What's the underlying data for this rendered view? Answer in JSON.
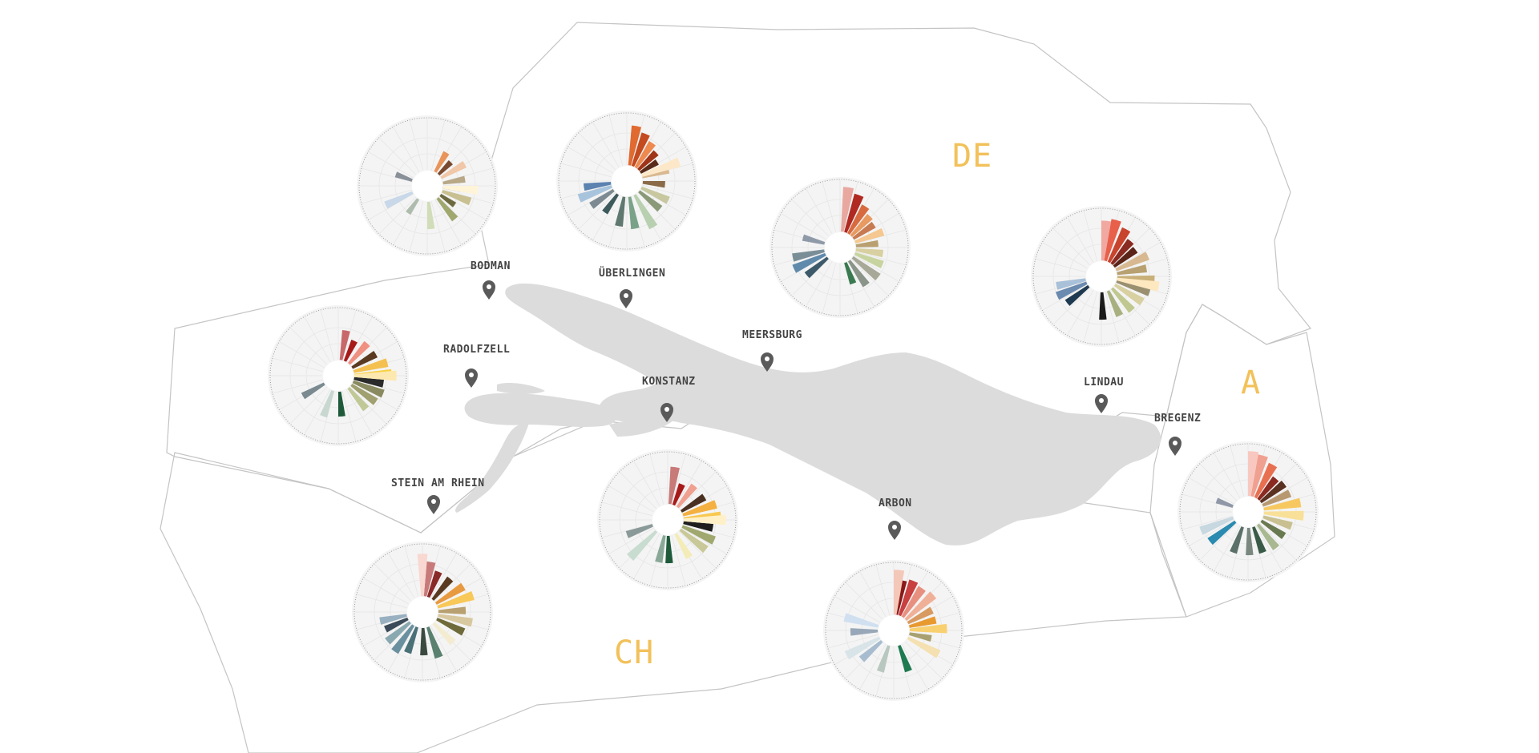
{
  "colors": {
    "background": "#ffffff",
    "lake": "#dcdcdc",
    "border": "#c4c4c4",
    "country_label": "#f2c15a",
    "town_label": "#444444",
    "pin": "#5a5a5a",
    "chart_face": "#f4f4f4",
    "chart_grid": "#e6e6e6",
    "chart_ring": "#9a9a9a"
  },
  "countries": [
    {
      "id": "de",
      "label": "DE"
    },
    {
      "id": "a",
      "label": "A"
    },
    {
      "id": "ch",
      "label": "CH"
    }
  ],
  "towns": [
    {
      "id": "bodman",
      "label": "BODMAN"
    },
    {
      "id": "ueberlingen",
      "label": "ÜBERLINGEN"
    },
    {
      "id": "meersburg",
      "label": "MEERSBURG"
    },
    {
      "id": "radolfzell",
      "label": "RADOLFZELL"
    },
    {
      "id": "konstanz",
      "label": "KONSTANZ"
    },
    {
      "id": "lindau",
      "label": "LINDAU"
    },
    {
      "id": "bregenz",
      "label": "BREGENZ"
    },
    {
      "id": "stein-am-rhein",
      "label": "STEIN AM RHEIN"
    },
    {
      "id": "arbon",
      "label": "ARBON"
    }
  ],
  "chart_data": [
    {
      "type": "radial-bar",
      "town": "bodman",
      "bars": [
        {
          "angle": 30,
          "value": 0.45,
          "color": "#e8945a"
        },
        {
          "angle": 45,
          "value": 0.35,
          "color": "#7a4a30"
        },
        {
          "angle": 60,
          "value": 0.55,
          "color": "#f0c7a8"
        },
        {
          "angle": 80,
          "value": 0.45,
          "color": "#b8a888"
        },
        {
          "angle": 95,
          "value": 0.35,
          "color": "#857055"
        },
        {
          "angle": 110,
          "value": 0.6,
          "color": "#c8c090"
        },
        {
          "angle": 125,
          "value": 0.35,
          "color": "#6e6a40"
        },
        {
          "angle": 140,
          "value": 0.55,
          "color": "#a0a870"
        },
        {
          "angle": 175,
          "value": 0.55,
          "color": "#d0ddb8"
        },
        {
          "angle": 215,
          "value": 0.35,
          "color": "#aebcae"
        },
        {
          "angle": 245,
          "value": 0.6,
          "color": "#c8d8e8"
        },
        {
          "angle": 290,
          "value": 0.35,
          "color": "#8a9098"
        },
        {
          "angle": 95,
          "value": 0.7,
          "color": "#fff4d8"
        }
      ]
    },
    {
      "type": "radial-bar",
      "town": "ueberlingen",
      "bars": [
        {
          "angle": 10,
          "value": 0.8,
          "color": "#e06a30"
        },
        {
          "angle": 22,
          "value": 0.7,
          "color": "#c44a20"
        },
        {
          "angle": 34,
          "value": 0.6,
          "color": "#ee8a50"
        },
        {
          "angle": 46,
          "value": 0.5,
          "color": "#a03418"
        },
        {
          "angle": 58,
          "value": 0.4,
          "color": "#5a2a18"
        },
        {
          "angle": 75,
          "value": 0.55,
          "color": "#d9b890"
        },
        {
          "angle": 95,
          "value": 0.45,
          "color": "#8a6a48"
        },
        {
          "angle": 115,
          "value": 0.6,
          "color": "#c8c8a0"
        },
        {
          "angle": 130,
          "value": 0.55,
          "color": "#8a9a78"
        },
        {
          "angle": 150,
          "value": 0.75,
          "color": "#b8d0b0"
        },
        {
          "angle": 170,
          "value": 0.65,
          "color": "#7aa288"
        },
        {
          "angle": 190,
          "value": 0.6,
          "color": "#5f7870"
        },
        {
          "angle": 215,
          "value": 0.45,
          "color": "#3d5a5c"
        },
        {
          "angle": 235,
          "value": 0.55,
          "color": "#7d8a92"
        },
        {
          "angle": 250,
          "value": 0.7,
          "color": "#a8c4dc"
        },
        {
          "angle": 262,
          "value": 0.55,
          "color": "#5c82b0"
        },
        {
          "angle": 70,
          "value": 0.8,
          "color": "#fce8c8"
        }
      ]
    },
    {
      "type": "radial-bar",
      "town": "meersburg",
      "bars": [
        {
          "angle": 20,
          "value": 0.8,
          "color": "#b02a22"
        },
        {
          "angle": 32,
          "value": 0.65,
          "color": "#d86a40"
        },
        {
          "angle": 44,
          "value": 0.55,
          "color": "#e89a60"
        },
        {
          "angle": 56,
          "value": 0.5,
          "color": "#c87a50"
        },
        {
          "angle": 70,
          "value": 0.6,
          "color": "#f4c890"
        },
        {
          "angle": 84,
          "value": 0.45,
          "color": "#b8a070"
        },
        {
          "angle": 98,
          "value": 0.55,
          "color": "#d8d0a0"
        },
        {
          "angle": 112,
          "value": 0.6,
          "color": "#c8d4a0"
        },
        {
          "angle": 128,
          "value": 0.65,
          "color": "#a8a898"
        },
        {
          "angle": 145,
          "value": 0.6,
          "color": "#8a9488"
        },
        {
          "angle": 160,
          "value": 0.45,
          "color": "#3a7a50"
        },
        {
          "angle": 230,
          "value": 0.55,
          "color": "#3d5a6a"
        },
        {
          "angle": 245,
          "value": 0.7,
          "color": "#5f8aac"
        },
        {
          "angle": 258,
          "value": 0.65,
          "color": "#7a8e98"
        },
        {
          "angle": 285,
          "value": 0.45,
          "color": "#8f9aa8"
        },
        {
          "angle": 8,
          "value": 0.9,
          "color": "#e8a8a0"
        }
      ]
    },
    {
      "type": "radial-bar",
      "town": "lindau",
      "bars": [
        {
          "angle": 15,
          "value": 0.85,
          "color": "#e8604a"
        },
        {
          "angle": 28,
          "value": 0.75,
          "color": "#c8442c"
        },
        {
          "angle": 40,
          "value": 0.6,
          "color": "#8a2a20"
        },
        {
          "angle": 52,
          "value": 0.55,
          "color": "#5a2418"
        },
        {
          "angle": 66,
          "value": 0.7,
          "color": "#d8b890"
        },
        {
          "angle": 80,
          "value": 0.6,
          "color": "#b8a070"
        },
        {
          "angle": 94,
          "value": 0.75,
          "color": "#c8b078"
        },
        {
          "angle": 108,
          "value": 0.7,
          "color": "#9a9070"
        },
        {
          "angle": 122,
          "value": 0.65,
          "color": "#d8d0a0"
        },
        {
          "angle": 138,
          "value": 0.6,
          "color": "#c0c890"
        },
        {
          "angle": 155,
          "value": 0.55,
          "color": "#a8b080"
        },
        {
          "angle": 178,
          "value": 0.55,
          "color": "#1a1a1a"
        },
        {
          "angle": 232,
          "value": 0.55,
          "color": "#1e3a50"
        },
        {
          "angle": 246,
          "value": 0.65,
          "color": "#6a8ab0"
        },
        {
          "angle": 258,
          "value": 0.6,
          "color": "#a8c0d8"
        },
        {
          "angle": 5,
          "value": 0.8,
          "color": "#f0a8a0"
        },
        {
          "angle": 100,
          "value": 0.85,
          "color": "#fde8c0"
        }
      ]
    },
    {
      "type": "radial-bar",
      "town": "radolfzell",
      "bars": [
        {
          "angle": 10,
          "value": 0.6,
          "color": "#c8686a"
        },
        {
          "angle": 25,
          "value": 0.45,
          "color": "#a81a1a"
        },
        {
          "angle": 42,
          "value": 0.55,
          "color": "#f09080"
        },
        {
          "angle": 60,
          "value": 0.55,
          "color": "#5a3a20"
        },
        {
          "angle": 75,
          "value": 0.7,
          "color": "#f4c050"
        },
        {
          "angle": 88,
          "value": 0.75,
          "color": "#f8d040"
        },
        {
          "angle": 100,
          "value": 0.6,
          "color": "#2a2a2a"
        },
        {
          "angle": 112,
          "value": 0.65,
          "color": "#8a8a60"
        },
        {
          "angle": 125,
          "value": 0.6,
          "color": "#a0a070"
        },
        {
          "angle": 140,
          "value": 0.55,
          "color": "#c0c898"
        },
        {
          "angle": 175,
          "value": 0.5,
          "color": "#1e5a3a"
        },
        {
          "angle": 200,
          "value": 0.55,
          "color": "#c8d8d0"
        },
        {
          "angle": 240,
          "value": 0.5,
          "color": "#7a8a90"
        },
        {
          "angle": 90,
          "value": 0.85,
          "color": "#fde8b0"
        }
      ]
    },
    {
      "type": "radial-bar",
      "town": "konstanz",
      "bars": [
        {
          "angle": 8,
          "value": 0.75,
          "color": "#c87a78"
        },
        {
          "angle": 22,
          "value": 0.45,
          "color": "#a81a1a"
        },
        {
          "angle": 38,
          "value": 0.55,
          "color": "#f0a090"
        },
        {
          "angle": 58,
          "value": 0.55,
          "color": "#4a3020"
        },
        {
          "angle": 72,
          "value": 0.7,
          "color": "#f4b040"
        },
        {
          "angle": 86,
          "value": 0.75,
          "color": "#f8c850"
        },
        {
          "angle": 100,
          "value": 0.6,
          "color": "#1e1e1e"
        },
        {
          "angle": 114,
          "value": 0.7,
          "color": "#a0a870"
        },
        {
          "angle": 128,
          "value": 0.65,
          "color": "#c8c898"
        },
        {
          "angle": 150,
          "value": 0.55,
          "color": "#f4ecb8"
        },
        {
          "angle": 178,
          "value": 0.55,
          "color": "#1e5a3a"
        },
        {
          "angle": 192,
          "value": 0.55,
          "color": "#8aa898"
        },
        {
          "angle": 225,
          "value": 0.75,
          "color": "#c8dcd0"
        },
        {
          "angle": 250,
          "value": 0.55,
          "color": "#8a9a98"
        },
        {
          "angle": 90,
          "value": 0.85,
          "color": "#fff0c8"
        }
      ]
    },
    {
      "type": "radial-bar",
      "town": "stein-am-rhein",
      "bars": [
        {
          "angle": 10,
          "value": 0.7,
          "color": "#c87a7a"
        },
        {
          "angle": 22,
          "value": 0.55,
          "color": "#8a2a28"
        },
        {
          "angle": 40,
          "value": 0.55,
          "color": "#5a3a20"
        },
        {
          "angle": 58,
          "value": 0.65,
          "color": "#e89a40"
        },
        {
          "angle": 72,
          "value": 0.75,
          "color": "#f8c858"
        },
        {
          "angle": 88,
          "value": 0.55,
          "color": "#b8a070"
        },
        {
          "angle": 102,
          "value": 0.7,
          "color": "#d8c8a0"
        },
        {
          "angle": 116,
          "value": 0.6,
          "color": "#6e6a3a"
        },
        {
          "angle": 135,
          "value": 0.55,
          "color": "#f4ecd0"
        },
        {
          "angle": 160,
          "value": 0.65,
          "color": "#5a8070"
        },
        {
          "angle": 178,
          "value": 0.55,
          "color": "#3a4a40"
        },
        {
          "angle": 200,
          "value": 0.55,
          "color": "#4a7078"
        },
        {
          "angle": 215,
          "value": 0.65,
          "color": "#6a90a0"
        },
        {
          "angle": 230,
          "value": 0.6,
          "color": "#8aa8b0"
        },
        {
          "angle": 245,
          "value": 0.5,
          "color": "#3a4a58"
        },
        {
          "angle": 258,
          "value": 0.55,
          "color": "#98b0c0"
        },
        {
          "angle": 0,
          "value": 0.85,
          "color": "#f8d8d0"
        }
      ]
    },
    {
      "type": "radial-bar",
      "town": "arbon",
      "bars": [
        {
          "angle": 10,
          "value": 0.7,
          "color": "#8a1a1a"
        },
        {
          "angle": 22,
          "value": 0.75,
          "color": "#c84040"
        },
        {
          "angle": 34,
          "value": 0.7,
          "color": "#e89080"
        },
        {
          "angle": 48,
          "value": 0.75,
          "color": "#f0b098"
        },
        {
          "angle": 62,
          "value": 0.55,
          "color": "#d89a60"
        },
        {
          "angle": 76,
          "value": 0.55,
          "color": "#e89a30"
        },
        {
          "angle": 88,
          "value": 0.75,
          "color": "#f8d070"
        },
        {
          "angle": 102,
          "value": 0.45,
          "color": "#a8a070"
        },
        {
          "angle": 118,
          "value": 0.7,
          "color": "#f4e0b0"
        },
        {
          "angle": 160,
          "value": 0.55,
          "color": "#1e7a50"
        },
        {
          "angle": 198,
          "value": 0.55,
          "color": "#b8c8c0"
        },
        {
          "angle": 228,
          "value": 0.55,
          "color": "#a8bcd0"
        },
        {
          "angle": 242,
          "value": 0.75,
          "color": "#d8e4e8"
        },
        {
          "angle": 268,
          "value": 0.55,
          "color": "#98a8b8"
        },
        {
          "angle": 285,
          "value": 0.7,
          "color": "#d0e0f0"
        },
        {
          "angle": 5,
          "value": 0.9,
          "color": "#f4c8b8"
        }
      ]
    },
    {
      "type": "radial-bar",
      "town": "bregenz",
      "bars": [
        {
          "angle": 15,
          "value": 0.85,
          "color": "#f0a090"
        },
        {
          "angle": 28,
          "value": 0.75,
          "color": "#e87050"
        },
        {
          "angle": 40,
          "value": 0.55,
          "color": "#8a2a20"
        },
        {
          "angle": 52,
          "value": 0.6,
          "color": "#5a3020"
        },
        {
          "angle": 66,
          "value": 0.6,
          "color": "#b89870"
        },
        {
          "angle": 80,
          "value": 0.75,
          "color": "#f8c860"
        },
        {
          "angle": 94,
          "value": 0.8,
          "color": "#f8e098"
        },
        {
          "angle": 108,
          "value": 0.6,
          "color": "#c8c090"
        },
        {
          "angle": 124,
          "value": 0.55,
          "color": "#6a7a50"
        },
        {
          "angle": 142,
          "value": 0.6,
          "color": "#a8b890"
        },
        {
          "angle": 160,
          "value": 0.55,
          "color": "#3a5a48"
        },
        {
          "angle": 178,
          "value": 0.55,
          "color": "#7a8880"
        },
        {
          "angle": 200,
          "value": 0.55,
          "color": "#5a7068"
        },
        {
          "angle": 232,
          "value": 0.65,
          "color": "#2a8ab0"
        },
        {
          "angle": 248,
          "value": 0.7,
          "color": "#c8d8e0"
        },
        {
          "angle": 290,
          "value": 0.35,
          "color": "#9098a8"
        },
        {
          "angle": 5,
          "value": 0.9,
          "color": "#f8c8c0"
        }
      ]
    }
  ]
}
